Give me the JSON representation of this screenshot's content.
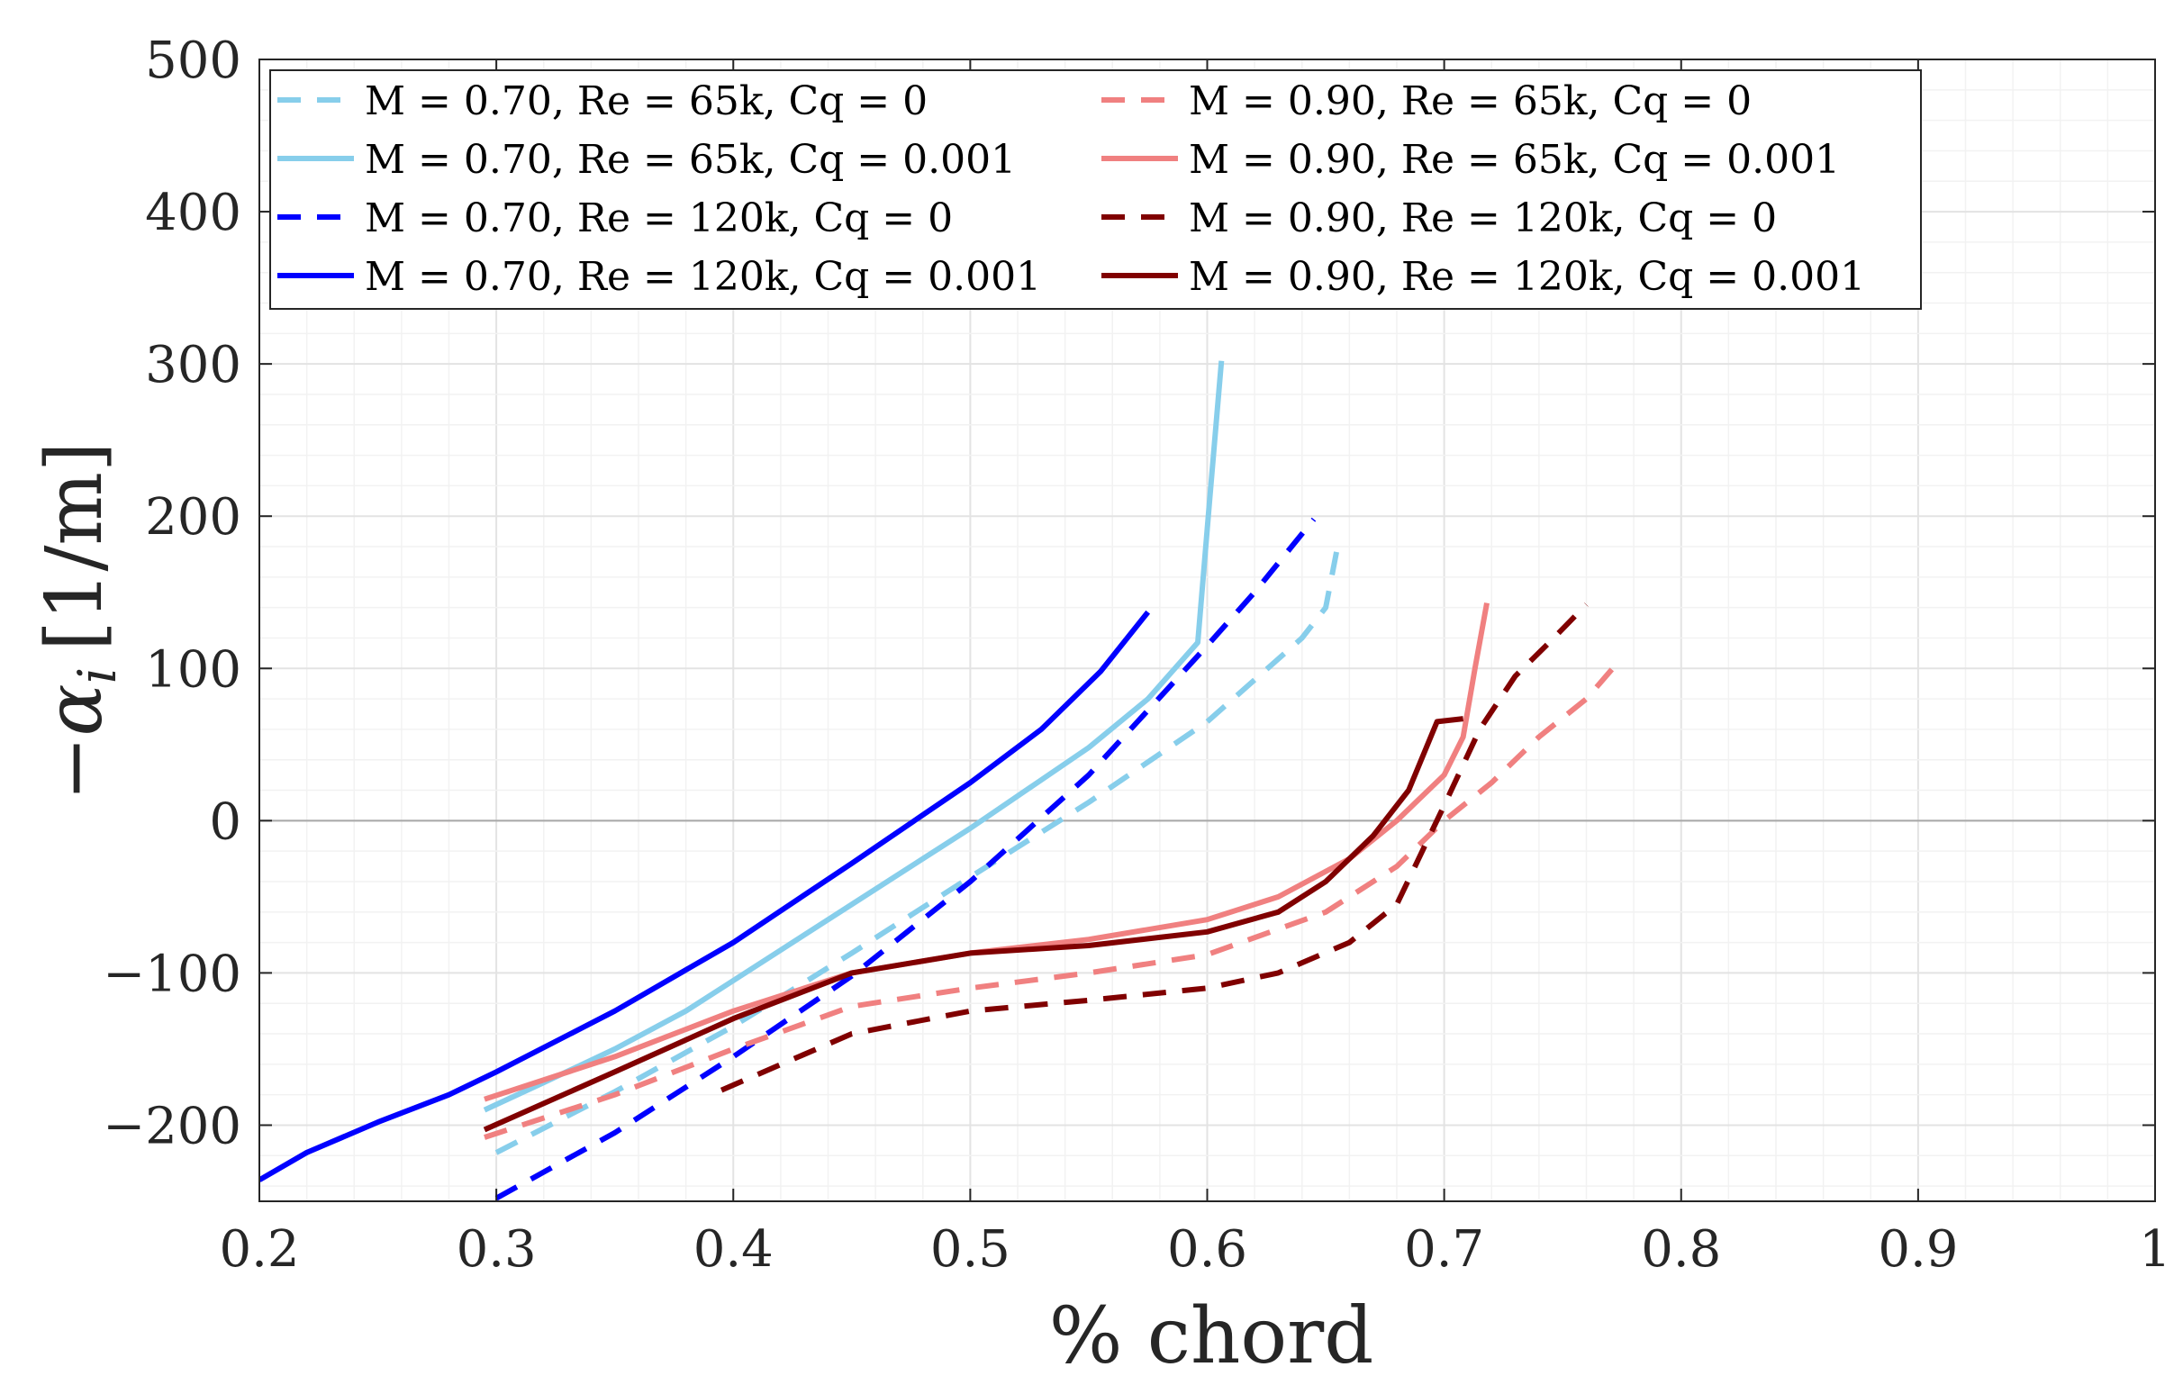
{
  "chart_data": {
    "type": "line",
    "xlabel": "% chord",
    "ylabel": "−α",
    "ylabel_sub": "i",
    "ylabel_unit": "[1/m]",
    "xlim": [
      0.2,
      1.0
    ],
    "ylim": [
      -250,
      500
    ],
    "xticks": [
      0.2,
      0.3,
      0.4,
      0.5,
      0.6,
      0.7,
      0.8,
      0.9,
      1.0
    ],
    "xtick_labels": [
      "0.2",
      "0.3",
      "0.4",
      "0.5",
      "0.6",
      "0.7",
      "0.8",
      "0.9",
      "1"
    ],
    "yticks": [
      -200,
      -100,
      0,
      100,
      200,
      300,
      400,
      500
    ],
    "ytick_labels": [
      "−200",
      "−100",
      "0",
      "100",
      "200",
      "300",
      "400",
      "500"
    ],
    "grid": true,
    "zero_line": true,
    "legend_position": "top-left",
    "legend_columns": 2,
    "series": [
      {
        "name": "M = 0.70, Re = 65k, Cq = 0",
        "color": "#87ceeb",
        "dash": true,
        "x": [
          0.3,
          0.35,
          0.4,
          0.45,
          0.5,
          0.55,
          0.6,
          0.64,
          0.65,
          0.655
        ],
        "y": [
          -218,
          -178,
          -135,
          -87,
          -37,
          12,
          65,
          120,
          140,
          180
        ]
      },
      {
        "name": "M = 0.70, Re = 65k, Cq = 0.001",
        "color": "#87ceeb",
        "dash": false,
        "x": [
          0.295,
          0.32,
          0.35,
          0.38,
          0.4,
          0.45,
          0.5,
          0.55,
          0.575,
          0.596,
          0.601,
          0.606
        ],
        "y": [
          -190,
          -172,
          -150,
          -125,
          -105,
          -55,
          -5,
          48,
          80,
          117,
          210,
          302
        ]
      },
      {
        "name": "M = 0.70, Re = 120k, Cq = 0",
        "color": "#0000ff",
        "dash": true,
        "x": [
          0.3,
          0.35,
          0.4,
          0.45,
          0.5,
          0.55,
          0.6,
          0.62,
          0.645
        ],
        "y": [
          -248,
          -205,
          -155,
          -102,
          -40,
          30,
          115,
          150,
          198
        ]
      },
      {
        "name": "M = 0.70, Re = 120k, Cq = 0.001",
        "color": "#0000ff",
        "dash": false,
        "x": [
          0.2,
          0.22,
          0.25,
          0.28,
          0.3,
          0.35,
          0.4,
          0.45,
          0.5,
          0.53,
          0.555,
          0.575
        ],
        "y": [
          -236,
          -218,
          -198,
          -180,
          -165,
          -125,
          -80,
          -28,
          25,
          60,
          98,
          137
        ]
      },
      {
        "name": "M = 0.90, Re = 65k, Cq = 0",
        "color": "#f08080",
        "dash": true,
        "x": [
          0.295,
          0.35,
          0.4,
          0.45,
          0.5,
          0.55,
          0.6,
          0.65,
          0.68,
          0.7,
          0.72,
          0.74,
          0.76,
          0.775
        ],
        "y": [
          -208,
          -180,
          -150,
          -122,
          -110,
          -100,
          -88,
          -60,
          -30,
          0,
          25,
          55,
          80,
          107
        ]
      },
      {
        "name": "M = 0.90, Re = 65k, Cq = 0.001",
        "color": "#f08080",
        "dash": false,
        "x": [
          0.295,
          0.35,
          0.4,
          0.45,
          0.5,
          0.55,
          0.6,
          0.63,
          0.66,
          0.68,
          0.7,
          0.708,
          0.713,
          0.718
        ],
        "y": [
          -183,
          -155,
          -125,
          -100,
          -87,
          -78,
          -65,
          -50,
          -25,
          0,
          30,
          55,
          100,
          143
        ]
      },
      {
        "name": "M = 0.90, Re = 120k, Cq = 0",
        "color": "#800000",
        "dash": true,
        "x": [
          0.395,
          0.45,
          0.5,
          0.55,
          0.6,
          0.63,
          0.66,
          0.68,
          0.7,
          0.715,
          0.73,
          0.745,
          0.76
        ],
        "y": [
          -177,
          -140,
          -125,
          -118,
          -110,
          -100,
          -80,
          -55,
          10,
          60,
          95,
          118,
          142
        ]
      },
      {
        "name": "M = 0.90, Re = 120k, Cq = 0.001",
        "color": "#800000",
        "dash": false,
        "x": [
          0.295,
          0.35,
          0.4,
          0.45,
          0.5,
          0.55,
          0.6,
          0.63,
          0.65,
          0.67,
          0.685,
          0.697,
          0.708
        ],
        "y": [
          -203,
          -165,
          -130,
          -100,
          -87,
          -82,
          -73,
          -60,
          -40,
          -10,
          20,
          65,
          67
        ]
      }
    ]
  }
}
